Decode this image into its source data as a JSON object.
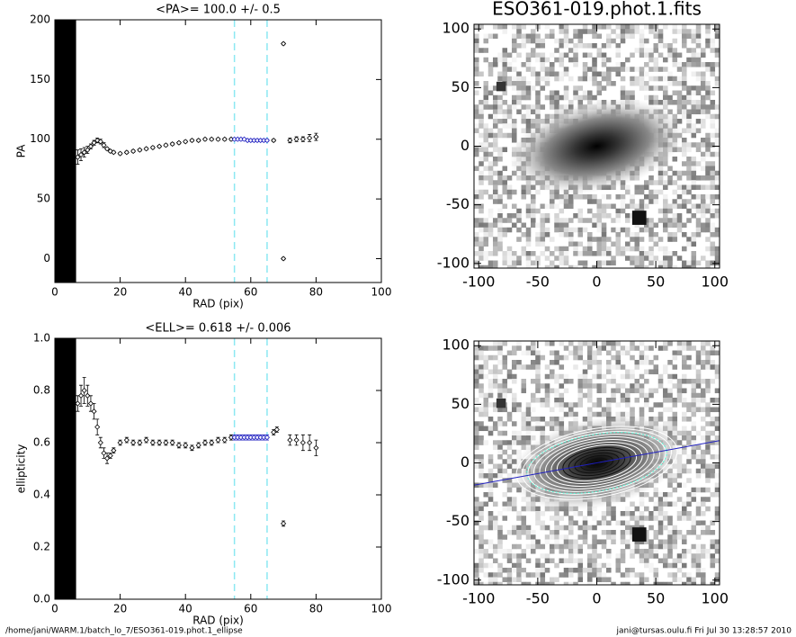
{
  "chart_data": [
    {
      "type": "errorbar",
      "title": "<PA>= 100.0 +/-   0.5",
      "x_label": "RAD (pix)",
      "y_label": "PA",
      "xlim": [
        0,
        100
      ],
      "ylim": [
        -20,
        200
      ],
      "xticks": [
        0,
        20,
        40,
        60,
        80,
        100
      ],
      "yticks": [
        0,
        50,
        100,
        150,
        200
      ],
      "band": [
        0,
        6.5
      ],
      "vlines": [
        55,
        65
      ],
      "vline_color": "#8ce8f2",
      "series": [
        {
          "color": "#000000",
          "x": [
            7,
            8,
            9,
            10,
            11,
            12,
            13,
            14,
            15,
            16,
            17,
            18,
            20,
            22,
            24,
            26,
            28,
            30,
            32,
            34,
            36,
            38,
            40,
            42,
            44,
            46,
            48,
            50,
            52,
            54,
            67,
            70,
            70,
            72,
            74,
            76,
            78,
            80
          ],
          "values": [
            85,
            87,
            89,
            91,
            94,
            97,
            99,
            98,
            95,
            92,
            90,
            89,
            88,
            89,
            90,
            91,
            92,
            93,
            94,
            95,
            96,
            97,
            98,
            99,
            99,
            100,
            100,
            100,
            100,
            100,
            99,
            180,
            0,
            99,
            100,
            100,
            101,
            102
          ],
          "errors": [
            6,
            5,
            4,
            3,
            2,
            2,
            2,
            2,
            2,
            1,
            1,
            1,
            1,
            1,
            1,
            1,
            1,
            1,
            1,
            1,
            1,
            1,
            1,
            1,
            1,
            1,
            1,
            1,
            1,
            1,
            1,
            1,
            1,
            2,
            2,
            2,
            3,
            3
          ]
        },
        {
          "color": "#2020c0",
          "x": [
            55,
            56,
            57,
            58,
            59,
            60,
            61,
            62,
            63,
            64,
            65
          ],
          "values": [
            100,
            100,
            100,
            100,
            99,
            99,
            99,
            99,
            99,
            99,
            99
          ],
          "errors": [
            1,
            1,
            1,
            1,
            1,
            1,
            1,
            1,
            1,
            1,
            1
          ]
        }
      ]
    },
    {
      "type": "errorbar",
      "title": "<ELL>= 0.618 +/-  0.006",
      "x_label": "RAD (pix)",
      "y_label": "ellipticity",
      "xlim": [
        0,
        100
      ],
      "ylim": [
        0,
        1
      ],
      "xticks": [
        0,
        20,
        40,
        60,
        80,
        100
      ],
      "yticks": [
        {
          "value": 0,
          "label": "0.0"
        },
        0.2,
        0.4,
        0.6,
        0.8,
        {
          "value": 1,
          "label": "1.0"
        }
      ],
      "band": [
        0,
        6.5
      ],
      "vlines": [
        55,
        65
      ],
      "vline_color": "#8ce8f2",
      "series": [
        {
          "color": "#000000",
          "x": [
            7,
            8,
            9,
            10,
            11,
            12,
            13,
            14,
            15,
            16,
            17,
            18,
            20,
            22,
            24,
            26,
            28,
            30,
            32,
            34,
            36,
            38,
            40,
            42,
            44,
            46,
            48,
            50,
            52,
            54,
            67,
            68,
            70,
            72,
            74,
            76,
            78,
            80
          ],
          "values": [
            0.75,
            0.78,
            0.8,
            0.78,
            0.75,
            0.72,
            0.66,
            0.6,
            0.56,
            0.54,
            0.55,
            0.57,
            0.6,
            0.61,
            0.6,
            0.6,
            0.61,
            0.6,
            0.6,
            0.6,
            0.6,
            0.59,
            0.59,
            0.58,
            0.59,
            0.6,
            0.6,
            0.61,
            0.61,
            0.62,
            0.64,
            0.65,
            0.29,
            0.61,
            0.61,
            0.6,
            0.6,
            0.58
          ],
          "errors": [
            0.03,
            0.04,
            0.05,
            0.04,
            0.03,
            0.03,
            0.03,
            0.02,
            0.02,
            0.02,
            0.01,
            0.01,
            0.01,
            0.01,
            0.01,
            0.01,
            0.01,
            0.01,
            0.01,
            0.01,
            0.01,
            0.01,
            0.01,
            0.01,
            0.01,
            0.01,
            0.01,
            0.01,
            0.01,
            0.01,
            0.01,
            0.01,
            0.01,
            0.02,
            0.02,
            0.03,
            0.03,
            0.03
          ]
        },
        {
          "color": "#2020c0",
          "x": [
            55,
            56,
            57,
            58,
            59,
            60,
            61,
            62,
            63,
            64,
            65
          ],
          "values": [
            0.62,
            0.62,
            0.62,
            0.62,
            0.62,
            0.62,
            0.62,
            0.62,
            0.62,
            0.62,
            0.62
          ],
          "errors": [
            0.01,
            0.01,
            0.01,
            0.01,
            0.01,
            0.01,
            0.01,
            0.01,
            0.01,
            0.01,
            0.01
          ]
        }
      ]
    },
    {
      "type": "image",
      "title": "ESO361-019.phot.1.fits",
      "xlim": [
        -104,
        104
      ],
      "ylim": [
        -104,
        104
      ],
      "xticks": [
        -100,
        -50,
        0,
        50,
        100
      ],
      "yticks": [
        -100,
        -50,
        0,
        50,
        100
      ]
    },
    {
      "type": "image",
      "contours": true,
      "xlim": [
        -104,
        104
      ],
      "ylim": [
        -104,
        104
      ],
      "xticks": [
        -100,
        -50,
        0,
        50,
        100
      ],
      "yticks": [
        -100,
        -50,
        0,
        50,
        100
      ]
    }
  ],
  "footer": {
    "path": "/home/jani/WARM.1/batch_lo_7/ESO361-019.phot.1_ellipse",
    "user": "jani@tursas.oulu.fi  Fri Jul 30 13:28:57 2010"
  }
}
